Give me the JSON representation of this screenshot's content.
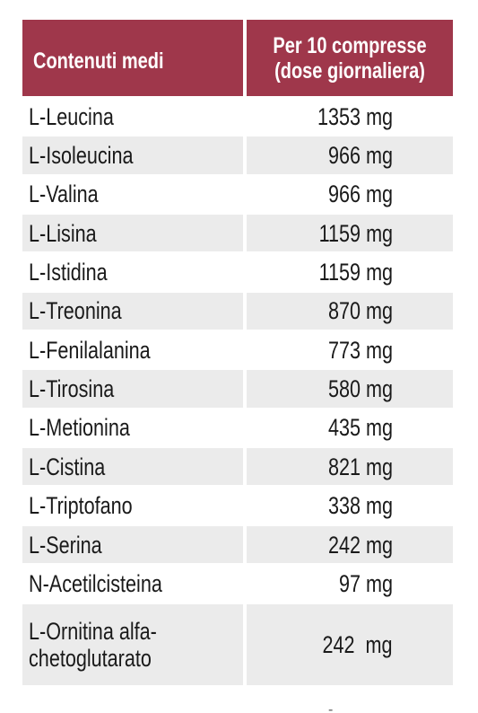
{
  "table": {
    "header": [
      "Contenuti medi",
      "Per 10 compresse\n(dose giornaliera)"
    ],
    "rows": [
      [
        "L-Leucina",
        "1353 mg"
      ],
      [
        "L-Isoleucina",
        "966 mg"
      ],
      [
        "L-Valina",
        "966 mg"
      ],
      [
        "L-Lisina",
        "1159 mg"
      ],
      [
        "L-Istidina",
        "1159 mg"
      ],
      [
        "L-Treonina",
        "870 mg"
      ],
      [
        "L-Fenilalanina",
        "773 mg"
      ],
      [
        "L-Tirosina",
        "580 mg"
      ],
      [
        "L-Metionina",
        "435 mg"
      ],
      [
        "L-Cistina",
        "821 mg"
      ],
      [
        "L-Triptofano",
        "338 mg"
      ],
      [
        "L-Serina",
        "242 mg"
      ],
      [
        "N-Acetilcisteina",
        "97 mg"
      ],
      [
        "L-Ornitina alfa-\nchetoglutarato",
        "242  mg"
      ]
    ]
  },
  "footer_mark": "-"
}
